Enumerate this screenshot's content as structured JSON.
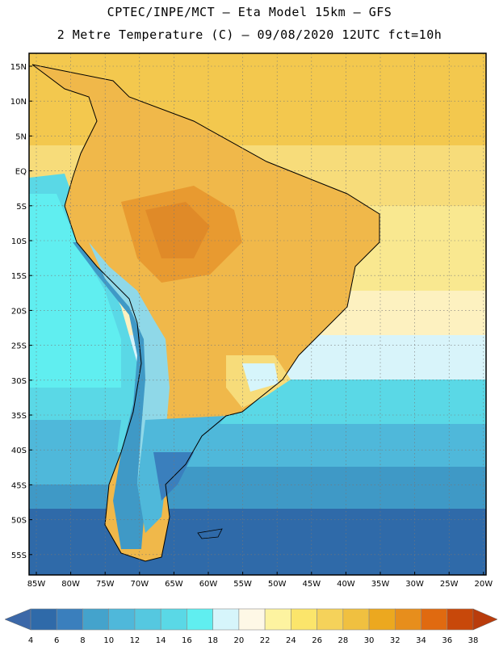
{
  "title_line1": "CPTEC/INPE/MCT –  Eta Model 15km – GFS",
  "title_line2": "2 Metre Temperature (C) – 09/08/2020 12UTC fct=10h",
  "map": {
    "lat_labels": [
      "15N",
      "10N",
      "5N",
      "EQ",
      "5S",
      "10S",
      "15S",
      "20S",
      "25S",
      "30S",
      "35S",
      "40S",
      "45S",
      "50S",
      "55S"
    ],
    "lon_labels": [
      "85W",
      "80W",
      "75W",
      "70W",
      "65W",
      "60W",
      "55W",
      "50W",
      "45W",
      "40W",
      "35W",
      "30W",
      "25W",
      "20W"
    ]
  },
  "colorbar": {
    "labels": [
      "4",
      "6",
      "8",
      "10",
      "12",
      "14",
      "16",
      "18",
      "20",
      "22",
      "24",
      "26",
      "28",
      "30",
      "32",
      "34",
      "36",
      "38"
    ],
    "colors": [
      "#2f6aa9",
      "#3a7fbd",
      "#44a3cc",
      "#4fb8da",
      "#55c8e0",
      "#5ad8e6",
      "#60eef0",
      "#d6f5fb",
      "#fef8e6",
      "#fdf3a0",
      "#fbe56b",
      "#f5d25a",
      "#f0c040",
      "#eca81f",
      "#e78e1c",
      "#e06a10",
      "#c8480a"
    ],
    "low_color": "#3c68a8",
    "high_color": "#b93c0c"
  }
}
